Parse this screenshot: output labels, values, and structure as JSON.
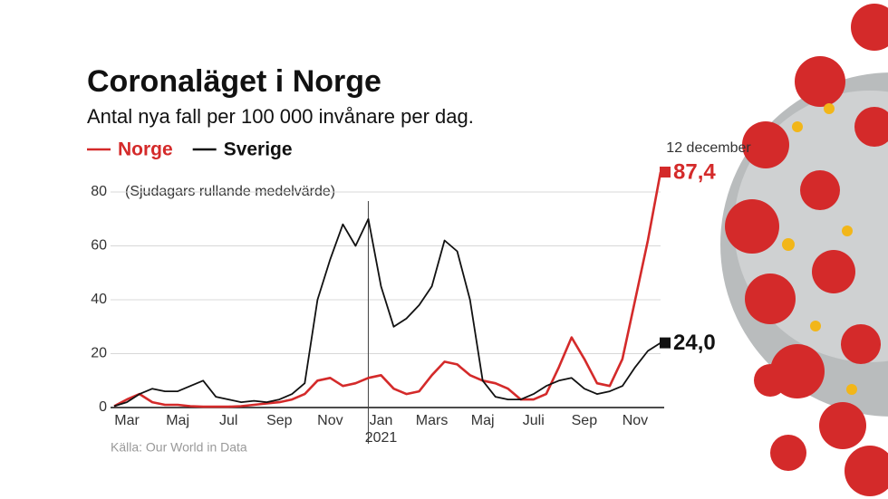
{
  "chart_data": {
    "type": "line",
    "title": "Coronaläget i Norge",
    "subtitle": "Antal nya fall per 100 000 invånare per dag.",
    "note": "(Sjudagars rullande medelvärde)",
    "source": "Källa: Our World in Data",
    "annotation": "12 december",
    "year_label": "2021",
    "categories": [
      null,
      "Mar",
      null,
      null,
      null,
      "Maj",
      null,
      null,
      null,
      "Jul",
      null,
      null,
      null,
      "Sep",
      null,
      null,
      null,
      "Nov",
      null,
      null,
      null,
      "Jan",
      null,
      null,
      null,
      "Mars",
      null,
      null,
      null,
      "Maj",
      null,
      null,
      null,
      "Juli",
      null,
      null,
      null,
      "Sep",
      null,
      null,
      null,
      "Nov",
      null,
      null
    ],
    "ylim": [
      0,
      80
    ],
    "yticks": [
      0,
      20,
      40,
      60,
      80
    ],
    "grid": true,
    "series": [
      {
        "name": "Norge",
        "color": "#d42a2a",
        "values": [
          0.5,
          3,
          5,
          2,
          1,
          1,
          0.5,
          0.3,
          0.3,
          0.3,
          0.5,
          1,
          1.5,
          2,
          3,
          5,
          10,
          11,
          8,
          9,
          11,
          12,
          7,
          5,
          6,
          12,
          17,
          16,
          12,
          10,
          9,
          7,
          3,
          3,
          5,
          15,
          26,
          18,
          9,
          8,
          18,
          40,
          62,
          87.4
        ],
        "value_labels": [
          null,
          null,
          null,
          null,
          null,
          null,
          null,
          null,
          null,
          null,
          null,
          null,
          null,
          null,
          null,
          null,
          null,
          null,
          null,
          null,
          null,
          null,
          null,
          null,
          null,
          null,
          null,
          null,
          null,
          null,
          null,
          null,
          null,
          null,
          null,
          null,
          null,
          null,
          null,
          null,
          null,
          null,
          null,
          "87,4"
        ]
      },
      {
        "name": "Sverige",
        "color": "#111111",
        "values": [
          0.5,
          2,
          5,
          7,
          6,
          6,
          8,
          10,
          4,
          3,
          2,
          2.5,
          2,
          3,
          5,
          9,
          40,
          55,
          68,
          60,
          70,
          45,
          30,
          33,
          38,
          45,
          62,
          58,
          40,
          10,
          4,
          3,
          3,
          5,
          8,
          10,
          11,
          7,
          5,
          6,
          8,
          15,
          21,
          24.0
        ],
        "value_labels": [
          null,
          null,
          null,
          null,
          null,
          null,
          null,
          null,
          null,
          null,
          null,
          null,
          null,
          null,
          null,
          null,
          null,
          null,
          null,
          null,
          null,
          null,
          null,
          null,
          null,
          null,
          null,
          null,
          null,
          null,
          null,
          null,
          null,
          null,
          null,
          null,
          null,
          null,
          null,
          null,
          null,
          null,
          null,
          "24,0"
        ]
      }
    ]
  }
}
